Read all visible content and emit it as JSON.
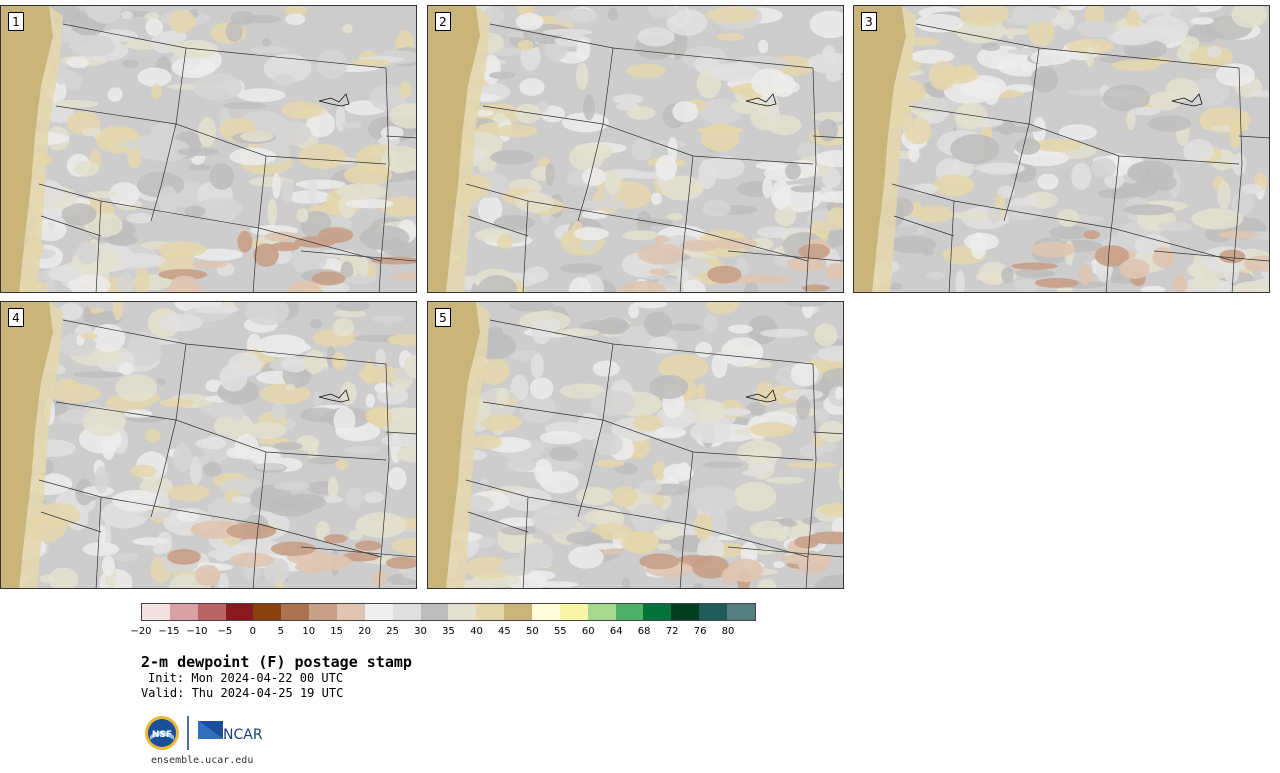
{
  "panels": [
    {
      "label": "1"
    },
    {
      "label": "2"
    },
    {
      "label": "3"
    },
    {
      "label": "4"
    },
    {
      "label": "5"
    }
  ],
  "colorbar": {
    "colors": [
      "#f4e2e2",
      "#d9a3a5",
      "#b86364",
      "#8b1a1f",
      "#8a4210",
      "#ad7252",
      "#c8a087",
      "#e0c5b3",
      "#efefef",
      "#e0e0e0",
      "#bdbdbd",
      "#e3e1cf",
      "#e4d7ac",
      "#c9b57a",
      "#fffdd9",
      "#f7f5a6",
      "#a6d98e",
      "#4db268",
      "#00733a",
      "#003d1f",
      "#1f5b5b",
      "#557f7f"
    ],
    "ticks": [
      "−20",
      "−15",
      "−10",
      "−5",
      "0",
      "5",
      "10",
      "15",
      "20",
      "25",
      "30",
      "35",
      "40",
      "45",
      "50",
      "55",
      "60",
      "64",
      "68",
      "72",
      "76",
      "80"
    ]
  },
  "title": "2-m dewpoint (F) postage stamp",
  "init": "Init: Mon 2024-04-22 00 UTC",
  "valid": "Valid: Thu 2024-04-25 19 UTC",
  "logos": {
    "nsf": "NSF",
    "ncar": "NCAR"
  },
  "site": "ensemble.ucar.edu"
}
